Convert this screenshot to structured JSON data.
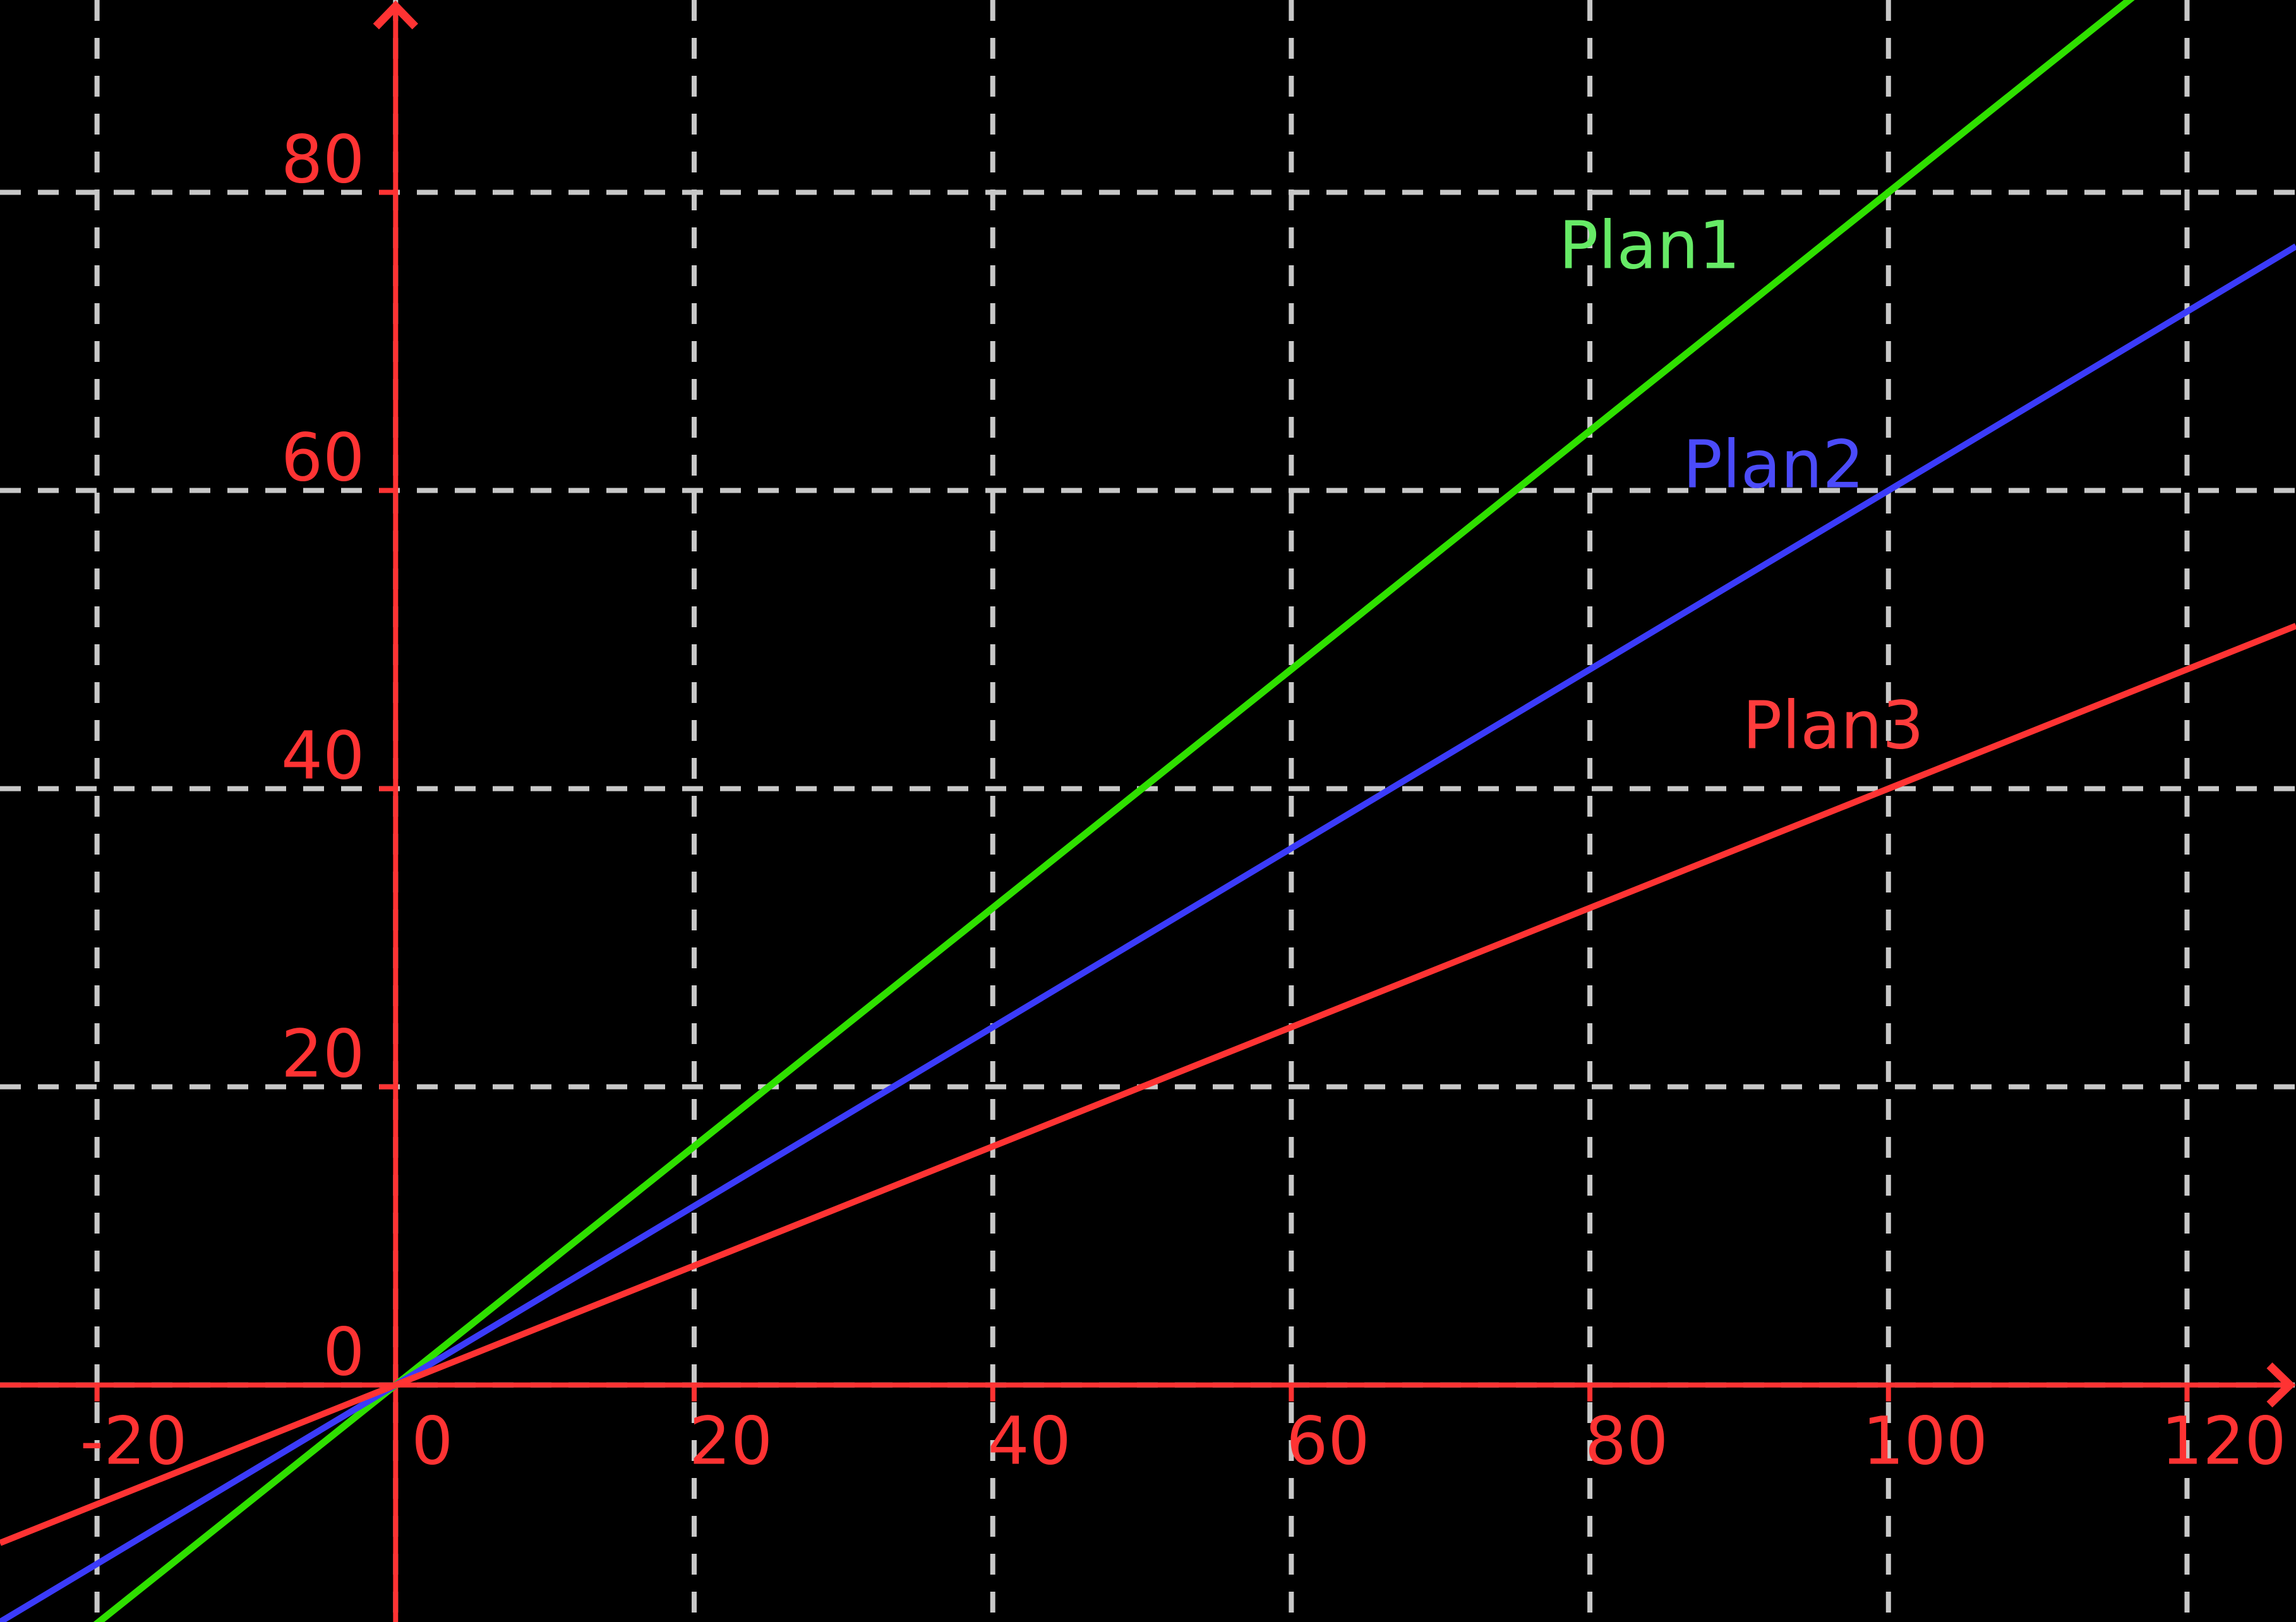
{
  "chart_data": {
    "type": "line",
    "title": "",
    "xlabel": "",
    "ylabel": "",
    "background": "#000000",
    "xlim": [
      -26.5,
      127.3
    ],
    "ylim": [
      -15.9,
      92.9
    ],
    "x_ticks": [
      -20,
      0,
      20,
      40,
      60,
      80,
      100,
      120
    ],
    "x_tick_labels": [
      "-20",
      "0",
      "20",
      "40",
      "60",
      "80",
      "100",
      "120"
    ],
    "y_ticks": [
      0,
      20,
      40,
      60,
      80
    ],
    "y_tick_labels": [
      "0",
      "20",
      "40",
      "60",
      "80"
    ],
    "grid": {
      "show": true,
      "style": "dashed",
      "color": "#c8c8c8",
      "line_width": 8,
      "dash": [
        33,
        27
      ]
    },
    "axes": {
      "color": "#ff3333",
      "line_width": 8,
      "arrows": true,
      "tick_length": 26,
      "tick_label_color": "#ff3333"
    },
    "legend": {
      "show": false,
      "style": "inline-labels"
    },
    "series": [
      {
        "name": "Plan1",
        "equation": "y = 0.8x",
        "slope": 0.8,
        "intercept": 0,
        "color": "#2fe000",
        "line_width": 11,
        "points": {
          "x": [
            -20,
            0,
            20,
            40,
            60,
            80,
            100,
            116
          ],
          "y": [
            -16,
            0,
            16,
            32,
            48,
            64,
            80,
            92.8
          ]
        },
        "label": {
          "text": "Plan1",
          "color": "#66ea66",
          "x": 84,
          "y": 76.6
        }
      },
      {
        "name": "Plan2",
        "equation": "y = 0.6x",
        "slope": 0.6,
        "intercept": 0,
        "color": "#3b3bfa",
        "line_width": 10,
        "points": {
          "x": [
            -26.5,
            0,
            20,
            40,
            60,
            80,
            100,
            120,
            127.3
          ],
          "y": [
            -15.9,
            0,
            12,
            24,
            36,
            48,
            60,
            72,
            76.4
          ]
        },
        "label": {
          "text": "Plan2",
          "color": "#4b4bfa",
          "x": 92.3,
          "y": 61.9
        }
      },
      {
        "name": "Plan3",
        "equation": "y = 0.4x",
        "slope": 0.4,
        "intercept": 0,
        "color": "#ff3333",
        "line_width": 10,
        "points": {
          "x": [
            -26.5,
            0,
            20,
            40,
            60,
            80,
            100,
            120,
            127.3
          ],
          "y": [
            -10.6,
            0,
            8,
            16,
            24,
            32,
            40,
            48,
            50.9
          ]
        },
        "label": {
          "text": "Plan3",
          "color": "#ff3c3c",
          "x": 96.3,
          "y": 44.4
        }
      }
    ]
  }
}
